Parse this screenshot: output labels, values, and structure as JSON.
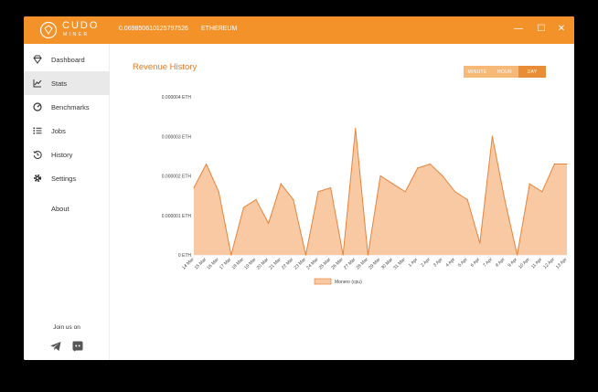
{
  "titlebar": {
    "logo_text": "CUDO",
    "logo_sub": "MINER",
    "balance": "0.069850610125797526",
    "currency": "ETHEREUM",
    "minimize": "—",
    "maximize": "☐",
    "close": "✕"
  },
  "sidebar": {
    "items": [
      {
        "label": "Dashboard",
        "icon": "diamond-icon"
      },
      {
        "label": "Stats",
        "icon": "chart-line-icon"
      },
      {
        "label": "Benchmarks",
        "icon": "speedometer-icon"
      },
      {
        "label": "Jobs",
        "icon": "list-icon"
      },
      {
        "label": "History",
        "icon": "history-icon"
      },
      {
        "label": "Settings",
        "icon": "gear-icon"
      },
      {
        "label": "About",
        "icon": ""
      }
    ],
    "active": "Stats",
    "join_text": "Join us on",
    "social": [
      "telegram-icon",
      "discord-icon"
    ]
  },
  "main": {
    "title": "Revenue History",
    "toggles": [
      {
        "label": "MINUTE",
        "active": false
      },
      {
        "label": "HOUR",
        "active": false
      },
      {
        "label": "DAY",
        "active": true
      }
    ]
  },
  "colors": {
    "accent": "#f4922a",
    "fill": "#f8c9a3",
    "line": "#e8833a",
    "title": "#e07b2a"
  },
  "chart_data": {
    "type": "area",
    "x": [
      "14 Mar",
      "15 Mar",
      "16 Mar",
      "17 Mar",
      "18 Mar",
      "19 Mar",
      "20 Mar",
      "21 Mar",
      "22 Mar",
      "23 Mar",
      "24 Mar",
      "25 Mar",
      "26 Mar",
      "27 Mar",
      "28 Mar",
      "29 Mar",
      "30 Mar",
      "31 Mar",
      "1 Apr",
      "2 Apr",
      "3 Apr",
      "4 Apr",
      "5 Apr",
      "6 Apr",
      "7 Apr",
      "8 Apr",
      "9 Apr",
      "10 Apr",
      "11 Apr",
      "12 Apr",
      "13 Apr"
    ],
    "series": [
      {
        "name": "Monero (cpu)",
        "values": [
          1.7e-06,
          2.3e-06,
          1.6e-06,
          0,
          1.2e-06,
          1.4e-06,
          8e-07,
          1.8e-06,
          1.4e-06,
          0,
          1.6e-06,
          1.7e-06,
          0,
          3.2e-06,
          0,
          2e-06,
          1.8e-06,
          1.6e-06,
          2.2e-06,
          2.3e-06,
          2e-06,
          1.6e-06,
          1.4e-06,
          3e-07,
          3e-06,
          1.4e-06,
          0,
          1.8e-06,
          1.6e-06,
          2.3e-06,
          2.3e-06
        ]
      }
    ],
    "yticks": [
      "0 ETH",
      "0.000001 ETH",
      "0.000002 ETH",
      "0.000003 ETH",
      "0.000004 ETH"
    ],
    "ylim": [
      0,
      4e-06
    ],
    "legend": "bottom",
    "grid": false
  }
}
